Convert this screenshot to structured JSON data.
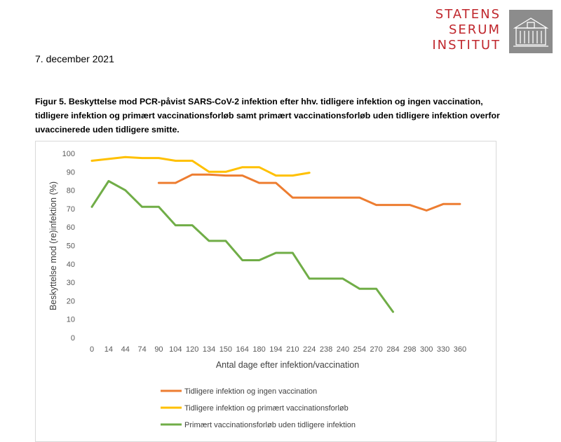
{
  "header": {
    "logo_lines": [
      "STATENS",
      "SERUM",
      "INSTITUT"
    ],
    "logo_icon": "building-icon",
    "date": "7. december 2021"
  },
  "figure": {
    "caption_lines": [
      "Figur 5. Beskyttelse mod PCR-påvist SARS-CoV-2 infektion efter hhv. tidligere infektion og ingen vaccination,",
      "tidligere infektion og primært vaccinationsforløb samt primært vaccinationsforløb uden tidligere infektion overfor",
      "uvaccinerede uden tidligere smitte."
    ]
  },
  "chart_data": {
    "type": "line",
    "title": "",
    "xlabel": "Antal dage efter infektion/vaccination",
    "ylabel": "Beskyttelse mod (re)infektion (%)",
    "ylim": [
      0,
      100
    ],
    "yticks": [
      0,
      10,
      20,
      30,
      40,
      50,
      60,
      70,
      80,
      90,
      100
    ],
    "categories": [
      "0",
      "14",
      "44",
      "74",
      "90",
      "104",
      "120",
      "134",
      "150",
      "164",
      "180",
      "194",
      "210",
      "224",
      "238",
      "240",
      "254",
      "270",
      "284",
      "298",
      "300",
      "330",
      "360"
    ],
    "grid": false,
    "legend_position": "bottom",
    "series": [
      {
        "name": "Tidligere infektion og ingen vaccination",
        "color": "#ed7d31",
        "values": [
          null,
          null,
          null,
          null,
          84,
          84,
          88.5,
          88.5,
          88,
          88,
          84,
          84,
          76,
          76,
          76,
          76,
          76,
          72,
          72,
          72,
          69,
          72.5,
          72.5
        ]
      },
      {
        "name": "Tidligere infektion og primært vaccinationsforløb",
        "color": "#ffc000",
        "values": [
          96,
          97,
          98,
          97.5,
          97.5,
          96,
          96,
          90,
          90,
          92.5,
          92.5,
          88,
          88,
          89.5,
          null,
          null,
          null,
          null,
          null,
          null,
          null,
          null,
          null
        ]
      },
      {
        "name": "Primært vaccinationsforløb uden tidligere infektion",
        "color": "#70ad47",
        "values": [
          71,
          85,
          80,
          71,
          71,
          61,
          61,
          52.5,
          52.5,
          42,
          42,
          46,
          46,
          32,
          32,
          32,
          26.5,
          26.5,
          14,
          null,
          null,
          null,
          null
        ]
      }
    ]
  }
}
